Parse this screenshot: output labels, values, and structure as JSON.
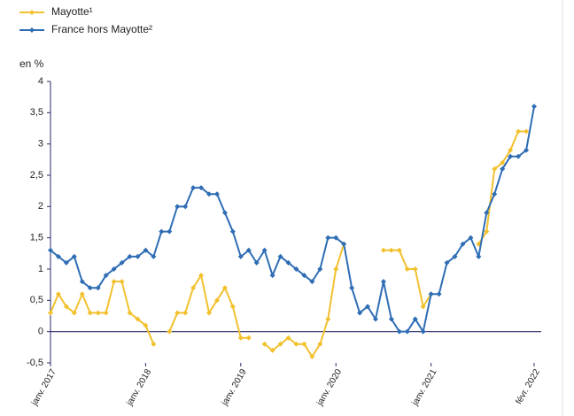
{
  "chart_data": {
    "type": "line",
    "y_label": "en %",
    "categories": [
      "janv. 2017",
      null,
      null,
      null,
      null,
      null,
      null,
      null,
      null,
      null,
      null,
      null,
      "janv. 2018",
      null,
      null,
      null,
      null,
      null,
      null,
      null,
      null,
      null,
      null,
      null,
      "janv. 2019",
      null,
      null,
      null,
      null,
      null,
      null,
      null,
      null,
      null,
      null,
      null,
      "janv. 2020",
      null,
      null,
      null,
      null,
      null,
      null,
      null,
      null,
      null,
      null,
      null,
      "janv. 2021",
      null,
      null,
      null,
      null,
      null,
      null,
      null,
      null,
      null,
      null,
      null,
      null,
      "févr. 2022"
    ],
    "series": [
      {
        "name": "Mayotte¹",
        "color": "#f2c12e",
        "values": [
          0.3,
          0.6,
          0.4,
          0.3,
          0.6,
          0.3,
          0.3,
          0.3,
          0.8,
          0.8,
          0.3,
          0.2,
          0.1,
          -0.2,
          null,
          0.0,
          0.3,
          0.3,
          0.7,
          0.9,
          0.3,
          0.5,
          0.7,
          0.4,
          -0.1,
          -0.1,
          null,
          -0.2,
          -0.3,
          -0.2,
          -0.1,
          -0.2,
          -0.2,
          -0.4,
          -0.2,
          0.2,
          1.0,
          1.4,
          null,
          null,
          null,
          null,
          1.3,
          1.3,
          1.3,
          1.0,
          1.0,
          0.4,
          0.6,
          null,
          null,
          null,
          null,
          null,
          1.4,
          1.6,
          2.6,
          2.7,
          2.9,
          3.2,
          3.2,
          null
        ]
      },
      {
        "name": "France hors Mayotte²",
        "color": "#2f6db5",
        "values": [
          1.3,
          1.2,
          1.1,
          1.2,
          0.8,
          0.7,
          0.7,
          0.9,
          1.0,
          1.1,
          1.2,
          1.2,
          1.3,
          1.2,
          1.6,
          1.6,
          2.0,
          2.0,
          2.3,
          2.3,
          2.2,
          2.2,
          1.9,
          1.6,
          1.2,
          1.3,
          1.1,
          1.3,
          0.9,
          1.2,
          1.1,
          1.0,
          0.9,
          0.8,
          1.0,
          1.5,
          1.5,
          1.4,
          0.7,
          0.3,
          0.4,
          0.2,
          0.8,
          0.2,
          0.0,
          0.0,
          0.2,
          0.0,
          0.6,
          0.6,
          1.1,
          1.2,
          1.4,
          1.5,
          1.2,
          1.9,
          2.2,
          2.6,
          2.8,
          2.8,
          2.9,
          3.6
        ]
      }
    ],
    "ylim": [
      -0.5,
      4
    ],
    "yticks": [
      {
        "value": -0.5,
        "label": "-0,5"
      },
      0,
      {
        "value": 0.5,
        "label": "0,5"
      },
      1,
      {
        "value": 1.5,
        "label": "1,5"
      },
      2,
      {
        "value": 2.5,
        "label": "2,5"
      },
      3,
      {
        "value": 3.5,
        "label": "3,5"
      },
      4
    ],
    "legend": "top-left",
    "grid": false
  }
}
